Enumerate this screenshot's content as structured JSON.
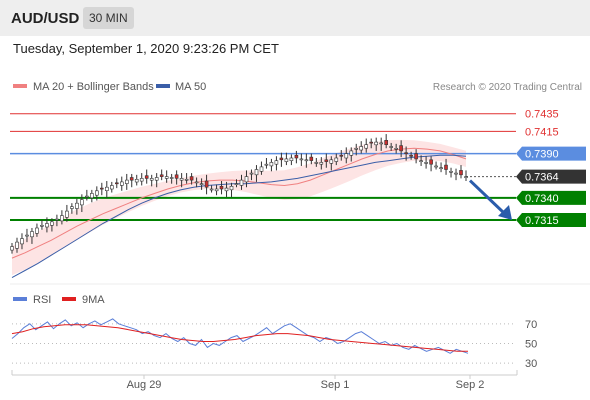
{
  "header": {
    "pair": "AUD/USD",
    "interval": "30 MIN",
    "datetime": "Tuesday, September 1, 2020 9:23:26 PM CET"
  },
  "colors": {
    "ma20": "#f08080",
    "ma50": "#3a5ea8",
    "bollinger_fill": "#fde4e4",
    "resistance": "#e03030",
    "pivot": "#5b8de0",
    "support": "#008000",
    "current": "#333333",
    "candle_up": "#ffffff",
    "candle_down": "#c83030",
    "rsi": "#5b7fd8",
    "rsi_ma": "#e02020",
    "arrow": "#2a5cab"
  },
  "chart_data": [
    {
      "type": "candlestick",
      "legend": [
        {
          "name": "MA 20 + Bollinger Bands",
          "color": "#f08080"
        },
        {
          "name": "MA 50",
          "color": "#3a5ea8"
        }
      ],
      "legend_placement": "top-left",
      "source_note": "Research © 2020 Trading Central",
      "ylim": [
        0.7245,
        0.7455
      ],
      "x_tick_labels": [
        "Aug 29",
        "Sep 1",
        "Sep 2"
      ],
      "levels": [
        {
          "value": 0.7435,
          "label": "0.7435",
          "kind": "resistance"
        },
        {
          "value": 0.7415,
          "label": "0.7415",
          "kind": "resistance"
        },
        {
          "value": 0.739,
          "label": "0.7390",
          "kind": "pivot"
        },
        {
          "value": 0.7364,
          "label": "0.7364",
          "kind": "current"
        },
        {
          "value": 0.734,
          "label": "0.7340",
          "kind": "support"
        },
        {
          "value": 0.7315,
          "label": "0.7315",
          "kind": "support"
        }
      ],
      "close_series": [
        0.7285,
        0.729,
        0.7294,
        0.7298,
        0.7302,
        0.7306,
        0.7309,
        0.7311,
        0.7313,
        0.7316,
        0.732,
        0.7325,
        0.733,
        0.7334,
        0.7338,
        0.7342,
        0.7345,
        0.7348,
        0.735,
        0.7352,
        0.7354,
        0.7356,
        0.7358,
        0.736,
        0.736,
        0.7361,
        0.7362,
        0.7362,
        0.7362,
        0.7363,
        0.7364,
        0.7364,
        0.7363,
        0.7362,
        0.7362,
        0.7361,
        0.736,
        0.7358,
        0.7356,
        0.7352,
        0.735,
        0.735,
        0.735,
        0.7351,
        0.7353,
        0.7356,
        0.736,
        0.7364,
        0.7368,
        0.7372,
        0.7375,
        0.7378,
        0.738,
        0.7382,
        0.7383,
        0.7384,
        0.7385,
        0.7385,
        0.7384,
        0.7383,
        0.7382,
        0.738,
        0.738,
        0.7381,
        0.7383,
        0.7385,
        0.7387,
        0.739,
        0.7393,
        0.7396,
        0.7398,
        0.74,
        0.7402,
        0.7403,
        0.7402,
        0.74,
        0.7398,
        0.7396,
        0.7393,
        0.739,
        0.7387,
        0.7384,
        0.7382,
        0.738,
        0.7378,
        0.7376,
        0.7374,
        0.7372,
        0.737,
        0.7368,
        0.7366,
        0.7364
      ],
      "ma20_series": [
        0.7272,
        0.7278,
        0.7285,
        0.7292,
        0.73,
        0.7308,
        0.7315,
        0.7322,
        0.7328,
        0.7334,
        0.734,
        0.7345,
        0.735,
        0.7354,
        0.7357,
        0.7359,
        0.736,
        0.736,
        0.7359,
        0.7357,
        0.7355,
        0.7354,
        0.7356,
        0.736,
        0.7366,
        0.7372,
        0.7378,
        0.7384,
        0.7389,
        0.7393,
        0.7395,
        0.7396,
        0.7395,
        0.7393,
        0.7389,
        0.7384
      ],
      "ma50_series": [
        0.725,
        0.7258,
        0.7266,
        0.7275,
        0.7284,
        0.7293,
        0.7302,
        0.7311,
        0.7319,
        0.7327,
        0.7334,
        0.734,
        0.7345,
        0.7349,
        0.7352,
        0.7354,
        0.7355,
        0.7356,
        0.7356,
        0.7357,
        0.7358,
        0.736,
        0.7362,
        0.7365,
        0.7368,
        0.7371,
        0.7374,
        0.7377,
        0.738,
        0.7382,
        0.7384,
        0.7386,
        0.7387,
        0.7388,
        0.7388,
        0.7387
      ],
      "forecast_arrow": {
        "from": 0.7364,
        "to": 0.7315
      }
    },
    {
      "type": "line",
      "legend": [
        {
          "name": "RSI",
          "color": "#5b7fd8"
        },
        {
          "name": "9MA",
          "color": "#e02020"
        }
      ],
      "ylim": [
        25,
        80
      ],
      "y_ticks": [
        70,
        50,
        30
      ],
      "series": [
        {
          "name": "RSI",
          "values": [
            55,
            60,
            66,
            70,
            64,
            68,
            72,
            65,
            70,
            74,
            68,
            71,
            66,
            70,
            73,
            69,
            72,
            75,
            70,
            68,
            66,
            64,
            60,
            62,
            58,
            56,
            60,
            55,
            52,
            56,
            50,
            48,
            54,
            46,
            50,
            48,
            52,
            56,
            58,
            52,
            55,
            58,
            62,
            66,
            60,
            64,
            68,
            70,
            66,
            62,
            58,
            56,
            52,
            56,
            54,
            50,
            52,
            56,
            60,
            62,
            58,
            54,
            50,
            52,
            48,
            50,
            46,
            44,
            48,
            45,
            42,
            44,
            46,
            43,
            40,
            44,
            42,
            40
          ]
        },
        {
          "name": "9MA",
          "values": [
            60,
            62,
            65,
            67,
            68,
            69,
            69,
            69,
            68,
            67,
            66,
            64,
            62,
            60,
            58,
            56,
            54,
            53,
            52,
            52,
            53,
            54,
            56,
            58,
            59,
            60,
            60,
            59,
            58,
            56,
            54,
            53,
            52,
            51,
            50,
            49,
            48,
            47,
            46,
            45,
            44,
            43,
            42,
            42
          ]
        }
      ]
    }
  ]
}
